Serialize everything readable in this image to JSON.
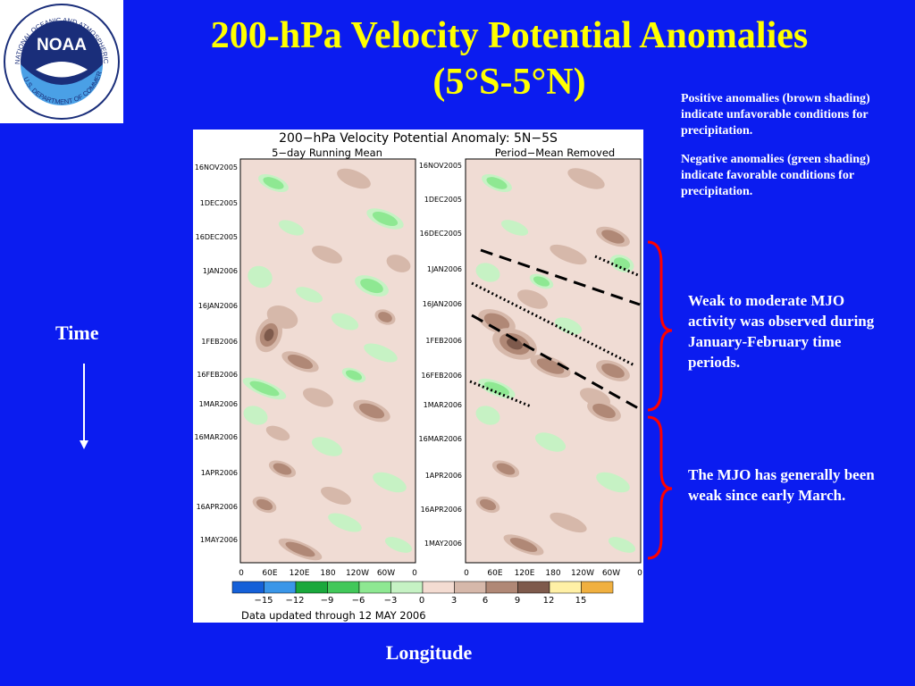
{
  "logo": {
    "text": "NOAA",
    "ring_text": "NATIONAL OCEANIC AND ATMOSPHERIC ADMINISTRATION",
    "bottom_text": "U.S. DEPARTMENT OF COMMERCE"
  },
  "title": {
    "line1": "200-hPa Velocity Potential Anomalies",
    "line2": "(5°S-5°N)"
  },
  "notes": {
    "positive": "Positive anomalies (brown shading) indicate unfavorable conditions for precipitation.",
    "negative": "Negative anomalies (green shading) indicate favorable conditions for precipitation."
  },
  "annotations": {
    "mjo_weak_moderate": "Weak to moderate MJO activity was observed during January-February time periods.",
    "mjo_weak": "The MJO has generally been weak since early March."
  },
  "axis_labels": {
    "time": "Time",
    "longitude": "Longitude"
  },
  "figure": {
    "title": "200−hPa Velocity Potential Anomaly: 5N−5S",
    "left_panel_title": "5−day Running Mean",
    "right_panel_title": "Period−Mean Removed",
    "date_ticks": [
      "16NOV2005",
      "1DEC2005",
      "16DEC2005",
      "1JAN2006",
      "16JAN2006",
      "1FEB2006",
      "16FEB2006",
      "1MAR2006",
      "16MAR2006",
      "1APR2006",
      "16APR2006",
      "1MAY2006"
    ],
    "lon_ticks": [
      "0",
      "60E",
      "120E",
      "180",
      "120W",
      "60W",
      "0"
    ],
    "colorbar_labels": [
      "−15",
      "−12",
      "−9",
      "−6",
      "−3",
      "0",
      "3",
      "6",
      "9",
      "12",
      "15"
    ],
    "colorbar_colors": [
      "#1560d8",
      "#3a96e8",
      "#1aa83c",
      "#42c85a",
      "#8ee892",
      "#c6f2c4",
      "#f4dcd2",
      "#d6b8aa",
      "#b08876",
      "#7e5a4c",
      "#fff0a6",
      "#f0b040"
    ],
    "footer": "Data updated through 12 MAY 2006"
  }
}
